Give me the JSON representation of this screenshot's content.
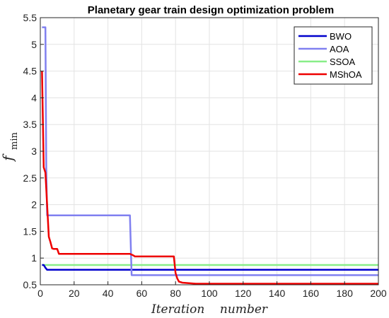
{
  "chart_data": {
    "type": "line",
    "title": "Planetary gear train design optimization problem",
    "xlabel": "Iteration    number",
    "ylabel": "f",
    "ylabel_sub": "min",
    "xlim": [
      0,
      200
    ],
    "ylim": [
      0.5,
      5.5
    ],
    "xticks": [
      0,
      20,
      40,
      60,
      80,
      100,
      120,
      140,
      160,
      180,
      200
    ],
    "yticks": [
      0.5,
      1,
      1.5,
      2,
      2.5,
      3,
      3.5,
      4,
      4.5,
      5,
      5.5
    ],
    "grid": true,
    "legend_position": "top-right",
    "series": [
      {
        "name": "BWO",
        "color": "#0000cc",
        "x": [
          1,
          2,
          3,
          4,
          200
        ],
        "y": [
          0.87,
          0.87,
          0.82,
          0.78,
          0.78
        ]
      },
      {
        "name": "AOA",
        "color": "#8080f0",
        "x": [
          1,
          3,
          3.5,
          4,
          53,
          54,
          200
        ],
        "y": [
          5.32,
          5.32,
          2.7,
          1.8,
          1.8,
          0.68,
          0.68
        ]
      },
      {
        "name": "SSOA",
        "color": "#88ee88",
        "x": [
          1,
          200
        ],
        "y": [
          0.87,
          0.87
        ]
      },
      {
        "name": "MShOA",
        "color": "#ee0000",
        "x": [
          1,
          2,
          3,
          4,
          5,
          6,
          7,
          8,
          10,
          11,
          53,
          55,
          56,
          79,
          80,
          81,
          82,
          84,
          92,
          200
        ],
        "y": [
          4.5,
          2.7,
          2.6,
          2.0,
          1.4,
          1.3,
          1.18,
          1.17,
          1.17,
          1.08,
          1.08,
          1.05,
          1.03,
          1.03,
          0.72,
          0.62,
          0.56,
          0.54,
          0.52,
          0.52
        ]
      }
    ]
  }
}
